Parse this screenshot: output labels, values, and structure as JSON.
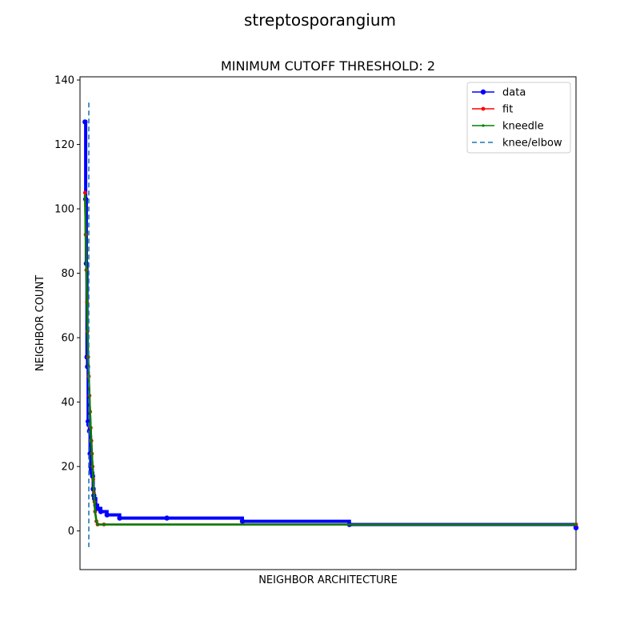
{
  "figure": {
    "suptitle": "streptosporangium"
  },
  "chart_data": {
    "type": "line",
    "title": "MINIMUM CUTOFF THRESHOLD: 2",
    "xlabel": "NEIGHBOR ARCHITECTURE",
    "ylabel": "NEIGHBOR COUNT",
    "xlim": [
      -8,
      780
    ],
    "ylim": [
      -12,
      141
    ],
    "yticks": [
      0,
      20,
      40,
      60,
      80,
      100,
      120,
      140
    ],
    "xticks_shown": false,
    "legend": {
      "placement": "top-right",
      "entries": [
        "data",
        "fit",
        "kneedle",
        "knee/elbow"
      ]
    },
    "colors": {
      "data": "#0000ff",
      "fit": "#ff0000",
      "kneedle": "#008000",
      "knee_elbow": "#1f77b4"
    },
    "series": [
      {
        "name": "data",
        "style": "line-with-markers",
        "x": [
          0,
          1,
          2,
          3,
          4,
          5,
          6,
          7,
          8,
          9,
          10,
          11,
          12,
          13,
          14,
          15,
          17,
          20,
          25,
          35,
          55,
          130,
          250,
          420,
          780
        ],
        "y": [
          127,
          103,
          83,
          54,
          51,
          34,
          33,
          31,
          24,
          20,
          19,
          18,
          17,
          13,
          11,
          10,
          8,
          7,
          6,
          5,
          4,
          4,
          3,
          2,
          1
        ]
      },
      {
        "name": "fit",
        "style": "line-with-markers",
        "x": [
          0,
          1,
          2,
          3,
          4,
          5,
          6,
          7,
          8,
          9,
          10,
          11,
          12,
          13,
          14,
          15,
          16,
          18,
          20,
          30,
          780
        ],
        "y": [
          105,
          92,
          81,
          71,
          62,
          54,
          48,
          42,
          37,
          32,
          28,
          24,
          20,
          16,
          12,
          9,
          6,
          3,
          2,
          2,
          2
        ]
      },
      {
        "name": "kneedle",
        "style": "line-with-markers",
        "x": [
          0,
          1,
          2,
          3,
          4,
          5,
          6,
          7,
          8,
          9,
          10,
          11,
          12,
          13,
          14,
          15,
          16,
          18,
          20,
          30,
          780
        ],
        "y": [
          104,
          92,
          81,
          71,
          62,
          54,
          48,
          42,
          37,
          32,
          28,
          24,
          20,
          16,
          12,
          9,
          6,
          3,
          2,
          2,
          2
        ]
      }
    ],
    "knee_elbow": {
      "name": "knee/elbow",
      "x": 6,
      "y_range": [
        -5,
        133
      ]
    }
  }
}
